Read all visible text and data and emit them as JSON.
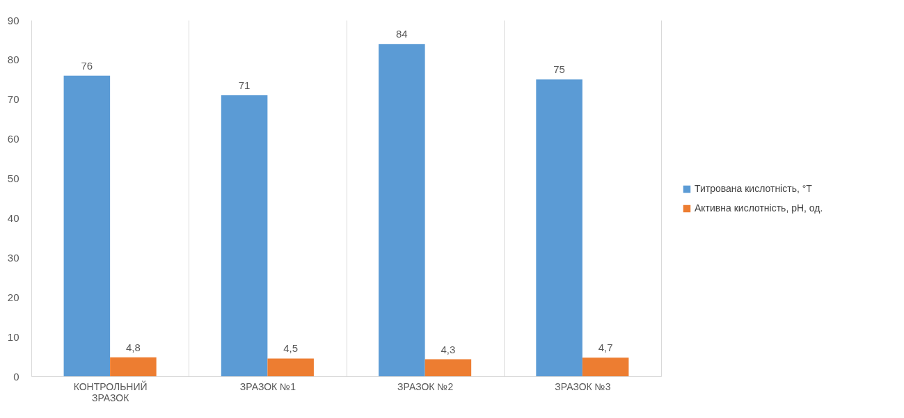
{
  "chart_data": {
    "type": "bar",
    "categories": [
      "КОНТРОЛЬНИЙ ЗРАЗОК",
      "ЗРАЗОК №1",
      "ЗРАЗОК №2",
      "ЗРАЗОК №3"
    ],
    "series": [
      {
        "name": "Титрована кислотність, °Т",
        "color": "#5b9bd5",
        "values": [
          76,
          71,
          84,
          75
        ],
        "value_labels": [
          "76",
          "71",
          "84",
          "75"
        ]
      },
      {
        "name": "Активна кислотність, pH, од.",
        "color": "#ed7d31",
        "values": [
          4.8,
          4.5,
          4.3,
          4.7
        ],
        "value_labels": [
          "4,8",
          "4,5",
          "4,3",
          "4,7"
        ]
      }
    ],
    "ylim": [
      0,
      90
    ],
    "yticks": [
      0,
      10,
      20,
      30,
      40,
      50,
      60,
      70,
      80,
      90
    ],
    "grid": "x",
    "legend": "right"
  }
}
